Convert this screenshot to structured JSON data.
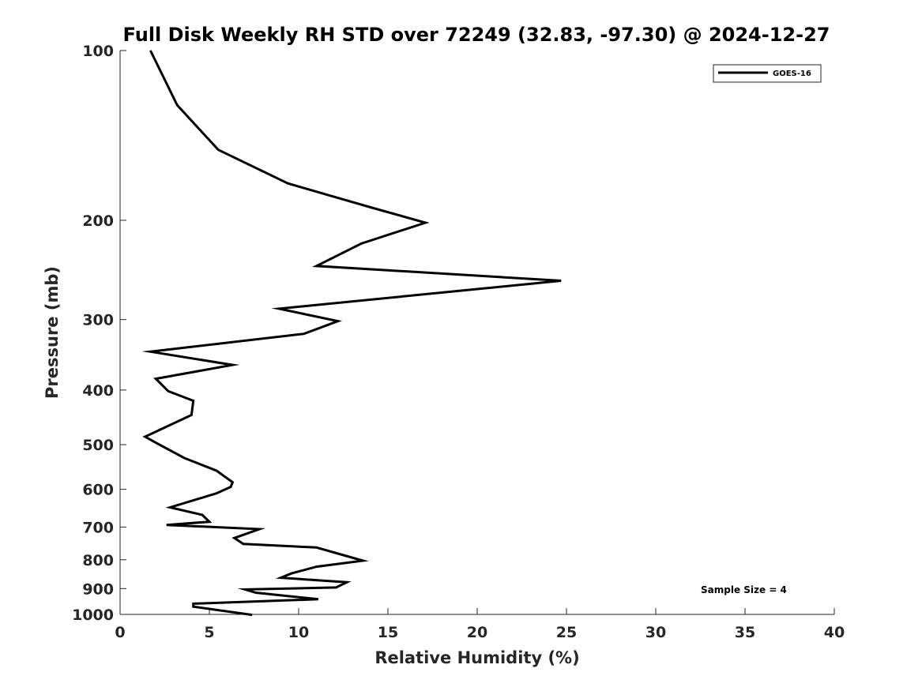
{
  "chart_data": {
    "type": "line",
    "title": "Full Disk Weekly RH STD over 72249 (32.83, -97.30) @ 2024-12-27",
    "xlabel": "Relative Humidity (%)",
    "ylabel": "Pressure (mb)",
    "xlim": [
      0,
      40
    ],
    "ylim": [
      100,
      1000
    ],
    "yscale": "log",
    "y_reversed": true,
    "grid": false,
    "xticks": [
      0,
      5,
      10,
      15,
      20,
      25,
      30,
      35,
      40
    ],
    "xtick_labels": [
      "0",
      "5",
      "10",
      "15",
      "20",
      "25",
      "30",
      "35",
      "40"
    ],
    "yticks": [
      100,
      200,
      300,
      400,
      500,
      600,
      700,
      800,
      900,
      1000
    ],
    "ytick_labels": [
      "100",
      "200",
      "300",
      "400",
      "500",
      "600",
      "700",
      "800",
      "900",
      "1000"
    ],
    "legend_position": "top-right",
    "series": [
      {
        "name": "GOES-16",
        "color": "#000000",
        "x": [
          1.7,
          3.2,
          5.5,
          9.4,
          14.1,
          17.1,
          13.5,
          11.0,
          24.7,
          8.9,
          12.2,
          10.3,
          1.7,
          6.3,
          2.0,
          2.7,
          4.1,
          4.0,
          1.4,
          2.0,
          3.6,
          5.4,
          6.3,
          6.2,
          5.4,
          2.8,
          4.6,
          5.0,
          2.6,
          7.8,
          6.4,
          6.9,
          11.0,
          13.6,
          11.0,
          9.6,
          9.0,
          12.7,
          12.1,
          7.0,
          7.6,
          11.1,
          4.1,
          4.1,
          7.4
        ],
        "y": [
          100,
          125,
          150,
          172,
          190,
          202,
          220,
          241,
          256,
          287,
          302,
          318,
          342,
          361,
          382,
          402,
          418,
          443,
          484,
          496,
          528,
          556,
          583,
          594,
          610,
          646,
          666,
          685,
          694,
          706,
          732,
          750,
          761,
          803,
          823,
          846,
          861,
          877,
          896,
          903,
          915,
          940,
          957,
          969,
          1002
        ]
      }
    ],
    "annotations": [
      "Sample Size = 4"
    ]
  }
}
